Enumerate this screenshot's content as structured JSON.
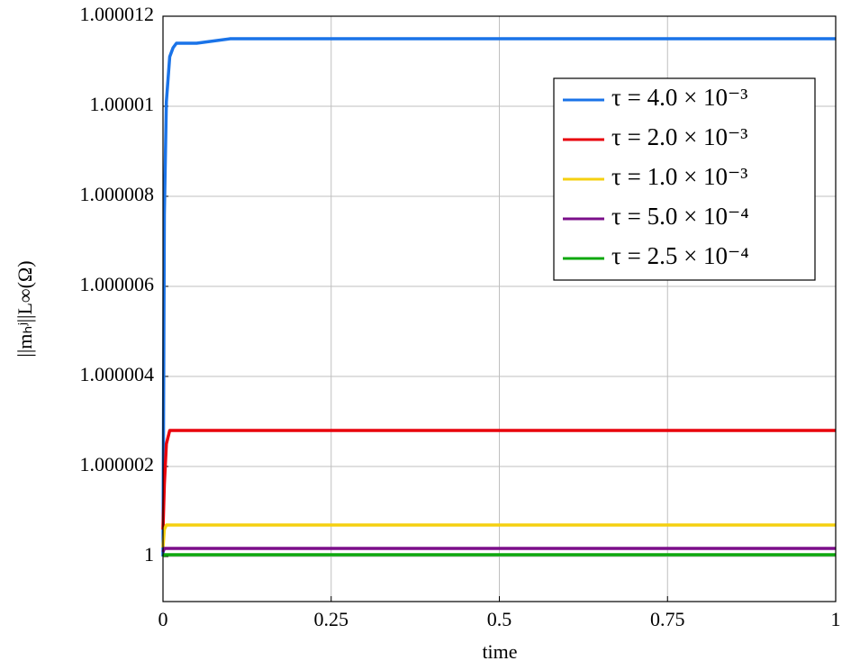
{
  "chart_data": {
    "type": "line",
    "xlabel": "time",
    "ylabel": "||mₕʲ||L∞(Ω)",
    "x": [
      0,
      0.002,
      0.005,
      0.01,
      0.015,
      0.02,
      0.03,
      0.05,
      0.1,
      0.2,
      0.5,
      1
    ],
    "series": [
      {
        "name": "τ = 4.0 × 10⁻³",
        "color": "#1a73e8",
        "values": [
          1,
          1.0000076,
          1.0000101,
          1.0000111,
          1.0000113,
          1.0000114,
          1.0000114,
          1.0000114,
          1.0000115,
          1.0000115,
          1.0000115,
          1.0000115
        ]
      },
      {
        "name": "τ = 2.0 × 10⁻³",
        "color": "#e8000b",
        "values": [
          1.0000006,
          1.0000016,
          1.0000025,
          1.0000028,
          1.0000028,
          1.0000028,
          1.0000028,
          1.0000028,
          1.0000028,
          1.0000028,
          1.0000028,
          1.0000028
        ]
      },
      {
        "name": "τ = 1.0 × 10⁻³",
        "color": "#f5d010",
        "values": [
          1.0000002,
          1.0000006,
          1.0000007,
          1.0000007,
          1.0000007,
          1.0000007,
          1.0000007,
          1.0000007,
          1.0000007,
          1.0000007,
          1.0000007,
          1.0000007
        ]
      },
      {
        "name": "τ = 5.0 × 10⁻⁴",
        "color": "#7b0f8a",
        "values": [
          1.0000001,
          1.00000018,
          1.00000018,
          1.00000018,
          1.00000018,
          1.00000018,
          1.00000018,
          1.00000018,
          1.00000018,
          1.00000018,
          1.00000018,
          1.00000018
        ]
      },
      {
        "name": "τ = 2.5 × 10⁻⁴",
        "color": "#0ea80e",
        "values": [
          1,
          1.00000004,
          1.00000004,
          1.00000004,
          1.00000004,
          1.00000004,
          1.00000004,
          1.00000004,
          1.00000004,
          1.00000004,
          1.00000004,
          1.00000004
        ]
      }
    ],
    "xlim": [
      0,
      1
    ],
    "xticks": [
      0,
      0.25,
      0.5,
      0.75,
      1
    ],
    "ylim": [
      0.999999,
      1.000012
    ],
    "yticks": [
      1,
      1.000002,
      1.000004,
      1.000006,
      1.000008,
      1.00001,
      1.000012
    ],
    "grid": true,
    "legend": "upper right"
  }
}
